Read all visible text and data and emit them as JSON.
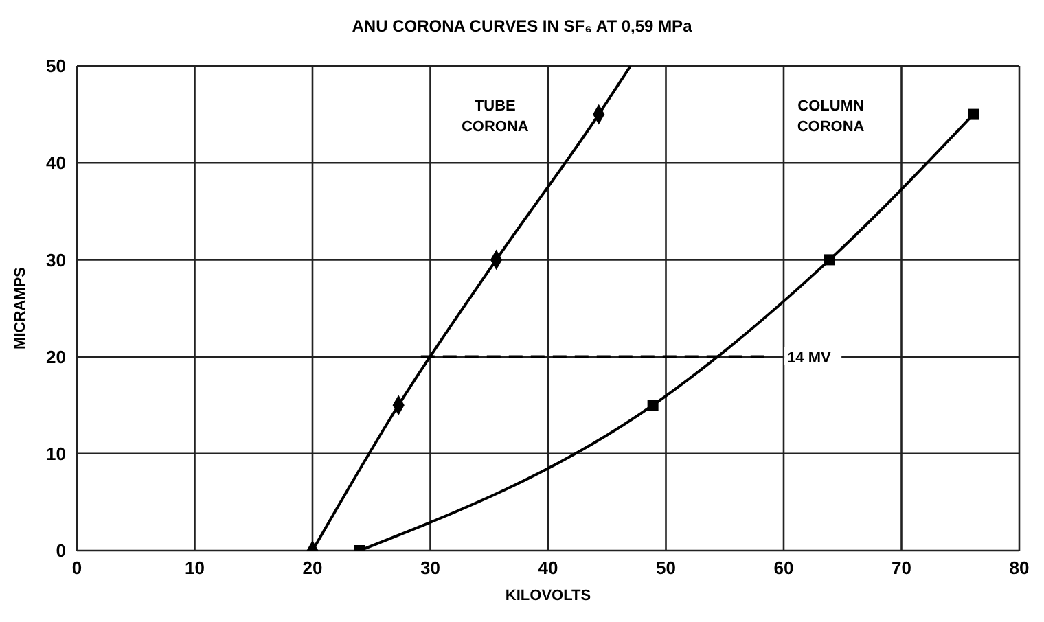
{
  "chart_data": {
    "type": "line",
    "title": "ANU CORONA CURVES IN SF₆ AT 0,59 MPa",
    "xlabel": "KILOVOLTS",
    "ylabel": "MICRAMPS",
    "xlim": [
      0,
      80
    ],
    "xticks": [
      0,
      10,
      20,
      30,
      40,
      50,
      60,
      70,
      80
    ],
    "ylim": [
      0,
      50
    ],
    "yticks": [
      0,
      10,
      20,
      30,
      40,
      50
    ],
    "grid": true,
    "series": [
      {
        "type": "line",
        "marker": "none",
        "color": "#000000",
        "x": [
          20,
          27.3,
          35.6,
          44.3,
          47
        ],
        "values": [
          0,
          15,
          30,
          45,
          50
        ]
      },
      {
        "type": "scatter",
        "marker": "diamond",
        "color": "#000000",
        "x": [
          20,
          27.3,
          35.6,
          44.3
        ],
        "values": [
          0,
          15,
          30,
          45
        ]
      },
      {
        "type": "line",
        "marker": "none",
        "color": "#000000",
        "x": [
          24,
          48.9,
          63.9,
          76.1
        ],
        "values": [
          0,
          15,
          30,
          45
        ]
      },
      {
        "type": "scatter",
        "marker": "square",
        "color": "#000000",
        "x": [
          24,
          48.9,
          63.9,
          76.1
        ],
        "values": [
          0,
          15,
          30,
          45
        ]
      },
      {
        "type": "line",
        "marker": "none",
        "line_style": "dashed",
        "color": "#000000",
        "x": [
          29.2,
          58.4
        ],
        "values": [
          20,
          20
        ]
      }
    ],
    "annotations": [
      "TUBE CORONA",
      "COLUMN CORONA",
      "14 MV"
    ]
  }
}
